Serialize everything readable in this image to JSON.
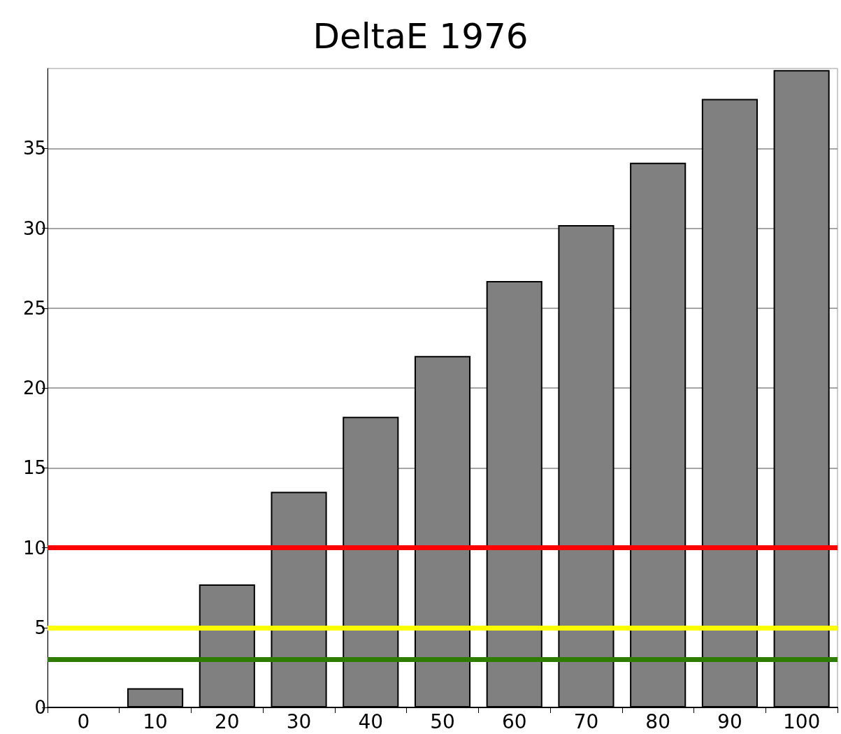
{
  "chart_data": {
    "type": "bar",
    "title": "DeltaE 1976",
    "categories": [
      "0",
      "10",
      "20",
      "30",
      "40",
      "50",
      "60",
      "70",
      "80",
      "90",
      "100"
    ],
    "values": [
      0,
      1.2,
      7.7,
      13.5,
      18.2,
      22.0,
      26.7,
      30.2,
      34.1,
      38.1,
      39.9
    ],
    "color": "#808080",
    "ylim": [
      0,
      40
    ],
    "yticks": [
      0,
      5,
      10,
      15,
      20,
      25,
      30,
      35
    ],
    "grid": "y",
    "ref_lines": [
      {
        "axis": "y",
        "value": 10,
        "color": "#ff0000"
      },
      {
        "axis": "y",
        "value": 5,
        "color": "#ffff00"
      },
      {
        "axis": "y",
        "value": 3,
        "color": "#2e7d00"
      }
    ]
  }
}
